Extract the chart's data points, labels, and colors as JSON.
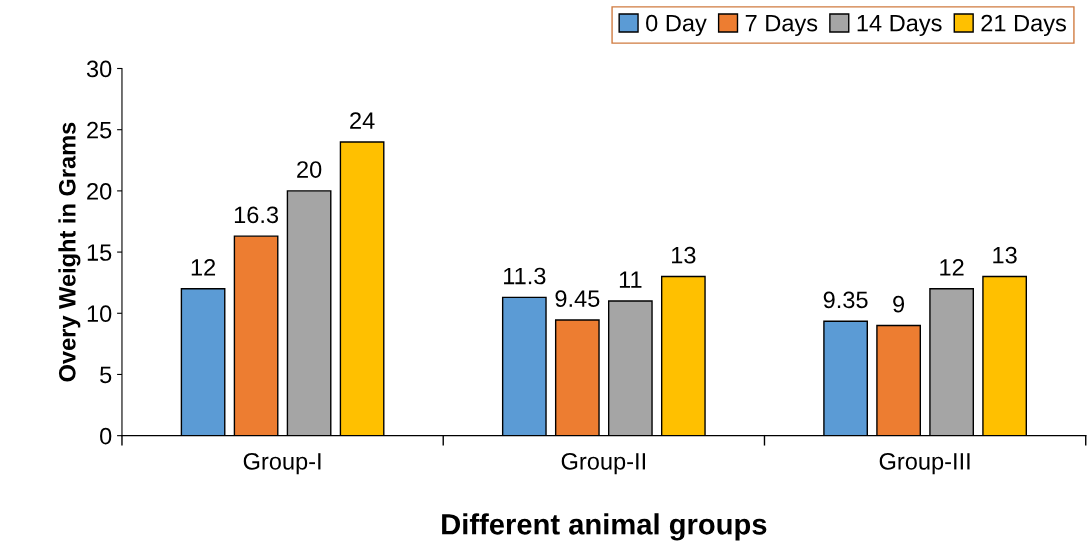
{
  "chart_data": {
    "type": "bar",
    "xlabel": "Different animal groups",
    "ylabel": "Overy Weight in Grams",
    "categories": [
      "Group-I",
      "Group-II",
      "Group-III"
    ],
    "series": [
      {
        "name": "0 Day",
        "color": "#5b9bd5",
        "values": [
          12,
          11.3,
          9.35
        ]
      },
      {
        "name": "7 Days",
        "color": "#ed7d31",
        "values": [
          16.3,
          9.45,
          9
        ]
      },
      {
        "name": "14 Days",
        "color": "#a5a5a5",
        "values": [
          20,
          11,
          12
        ]
      },
      {
        "name": "21 Days",
        "color": "#ffc000",
        "values": [
          24,
          13,
          13
        ]
      }
    ],
    "ylim": [
      0,
      30
    ],
    "yticks": [
      0,
      5,
      10,
      15,
      20,
      25,
      30
    ],
    "grid": false,
    "legend": "top right",
    "data_labels": true
  }
}
